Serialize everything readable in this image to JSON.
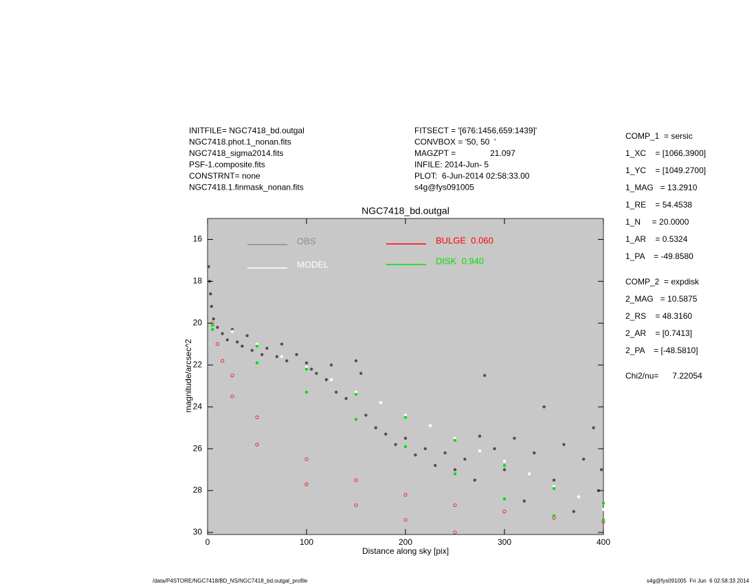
{
  "chart_data": {
    "type": "scatter",
    "title": "NGC7418_bd.outgal",
    "x_label": "Distance along sky [pix]",
    "y_label": "magnitude/arcsec^2",
    "xlim": [
      0,
      400
    ],
    "xticks": [
      0,
      100,
      200,
      300,
      400
    ],
    "ylim": [
      30.1,
      15
    ],
    "yticks": [
      16,
      18,
      20,
      22,
      24,
      26,
      28,
      30
    ],
    "background": "#c8c8c8",
    "info_left": [
      "INITFILE= NGC7418_bd.outgal",
      "NGC7418.phot.1_nonan.fits",
      "NGC7418_sigma2014.fits",
      "PSF-1.composite.fits",
      "CONSTRNT= none",
      "NGC7418.1.finmask_nonan.fits"
    ],
    "info_mid": [
      "FITSECT = '[676:1456,659:1439]'",
      "CONVBOX = '50, 50  '",
      "MAGZPT =               21.097",
      "INFILE: 2014-Jun- 5",
      "PLOT:  6-Jun-2014 02:58:33.00",
      "s4g@fys091005"
    ],
    "params": [
      [
        "COMP_1  = sersic",
        "1_XC    = [1066.3900]",
        "1_YC    = [1049.2700]",
        "1_MAG   = 13.2910",
        "1_RE    = 54.4538",
        "1_N     = 20.0000",
        "1_AR    = 0.5324",
        "1_PA    = -49.8580"
      ],
      [
        "COMP_2  = expdisk",
        "2_MAG   = 10.5875",
        "2_RS    = 48.3160",
        "2_AR    = [0.7413]",
        "2_PA    = [-48.5810]"
      ],
      [
        "Chi2/nu=      7.22054"
      ]
    ],
    "footer_left": "/data/P4STORE/NGC7418/BD_NS/NGC7418_bd.outgal_profile",
    "footer_right": "s4g@fys091005  Fri Jun  6 02:58:33 2014",
    "series": [
      {
        "name": "OBS",
        "color": "#505050",
        "legend_color": "#8c8c8c",
        "x": [
          1,
          2,
          3,
          4,
          6,
          10,
          15,
          20,
          25,
          30,
          35,
          40,
          45,
          50,
          55,
          60,
          70,
          75,
          80,
          90,
          100,
          105,
          110,
          120,
          125,
          130,
          140,
          150,
          155,
          160,
          170,
          180,
          190,
          200,
          210,
          220,
          230,
          240,
          250,
          260,
          270,
          275,
          280,
          290,
          300,
          310,
          320,
          330,
          340,
          350,
          360,
          370,
          380,
          390,
          395,
          398
        ],
        "values": [
          17.3,
          18,
          18.6,
          19.2,
          19.8,
          20.2,
          20.5,
          20.8,
          20.3,
          20.9,
          21.1,
          20.6,
          21.3,
          21.0,
          21.5,
          21.2,
          21.6,
          21.0,
          21.8,
          21.5,
          21.9,
          22.2,
          22.4,
          22.7,
          22.0,
          23.3,
          23.6,
          21.8,
          22.4,
          24.4,
          25.0,
          25.3,
          25.8,
          25.5,
          26.3,
          26.0,
          26.8,
          26.2,
          27.0,
          26.5,
          27.5,
          25.4,
          22.5,
          26.0,
          27.0,
          25.5,
          28.5,
          26.2,
          24.0,
          27.5,
          25.8,
          29.0,
          26.5,
          25.0,
          28.0,
          27.0
        ]
      },
      {
        "name": "MODEL",
        "color": "#ffffff",
        "legend_color": "#ffffff",
        "x": [
          5,
          25,
          50,
          75,
          100,
          125,
          150,
          175,
          200,
          225,
          250,
          275,
          300,
          325,
          350,
          375,
          400
        ],
        "values": [
          20.0,
          20.4,
          21.0,
          21.6,
          22.1,
          22.7,
          23.3,
          23.8,
          24.4,
          24.9,
          25.5,
          26.1,
          26.6,
          27.2,
          27.8,
          28.3,
          28.9
        ]
      },
      {
        "name": "BULGE  0.060",
        "color": "#ff0000",
        "legend_color": "#ff0000",
        "x": [
          5,
          10,
          25,
          50,
          100,
          150,
          200,
          250,
          300,
          350,
          400,
          15,
          25,
          50,
          100,
          150,
          200,
          250
        ],
        "values": [
          20.0,
          21.0,
          22.5,
          24.5,
          26.5,
          27.5,
          28.2,
          28.7,
          29.0,
          29.3,
          29.5,
          21.8,
          23.5,
          25.8,
          27.7,
          28.7,
          29.4,
          30.0
        ]
      },
      {
        "name": "DISK  0.940",
        "color": "#00e000",
        "legend_color": "#00e000",
        "x": [
          5,
          50,
          100,
          150,
          200,
          250,
          300,
          350,
          400,
          5,
          50,
          100,
          150,
          200,
          250,
          300,
          350,
          400
        ],
        "values": [
          20.1,
          21.1,
          22.2,
          23.4,
          24.5,
          25.6,
          26.8,
          27.9,
          28.6,
          20.3,
          21.9,
          23.3,
          24.6,
          25.9,
          27.2,
          28.4,
          29.2,
          29.4
        ]
      }
    ]
  }
}
